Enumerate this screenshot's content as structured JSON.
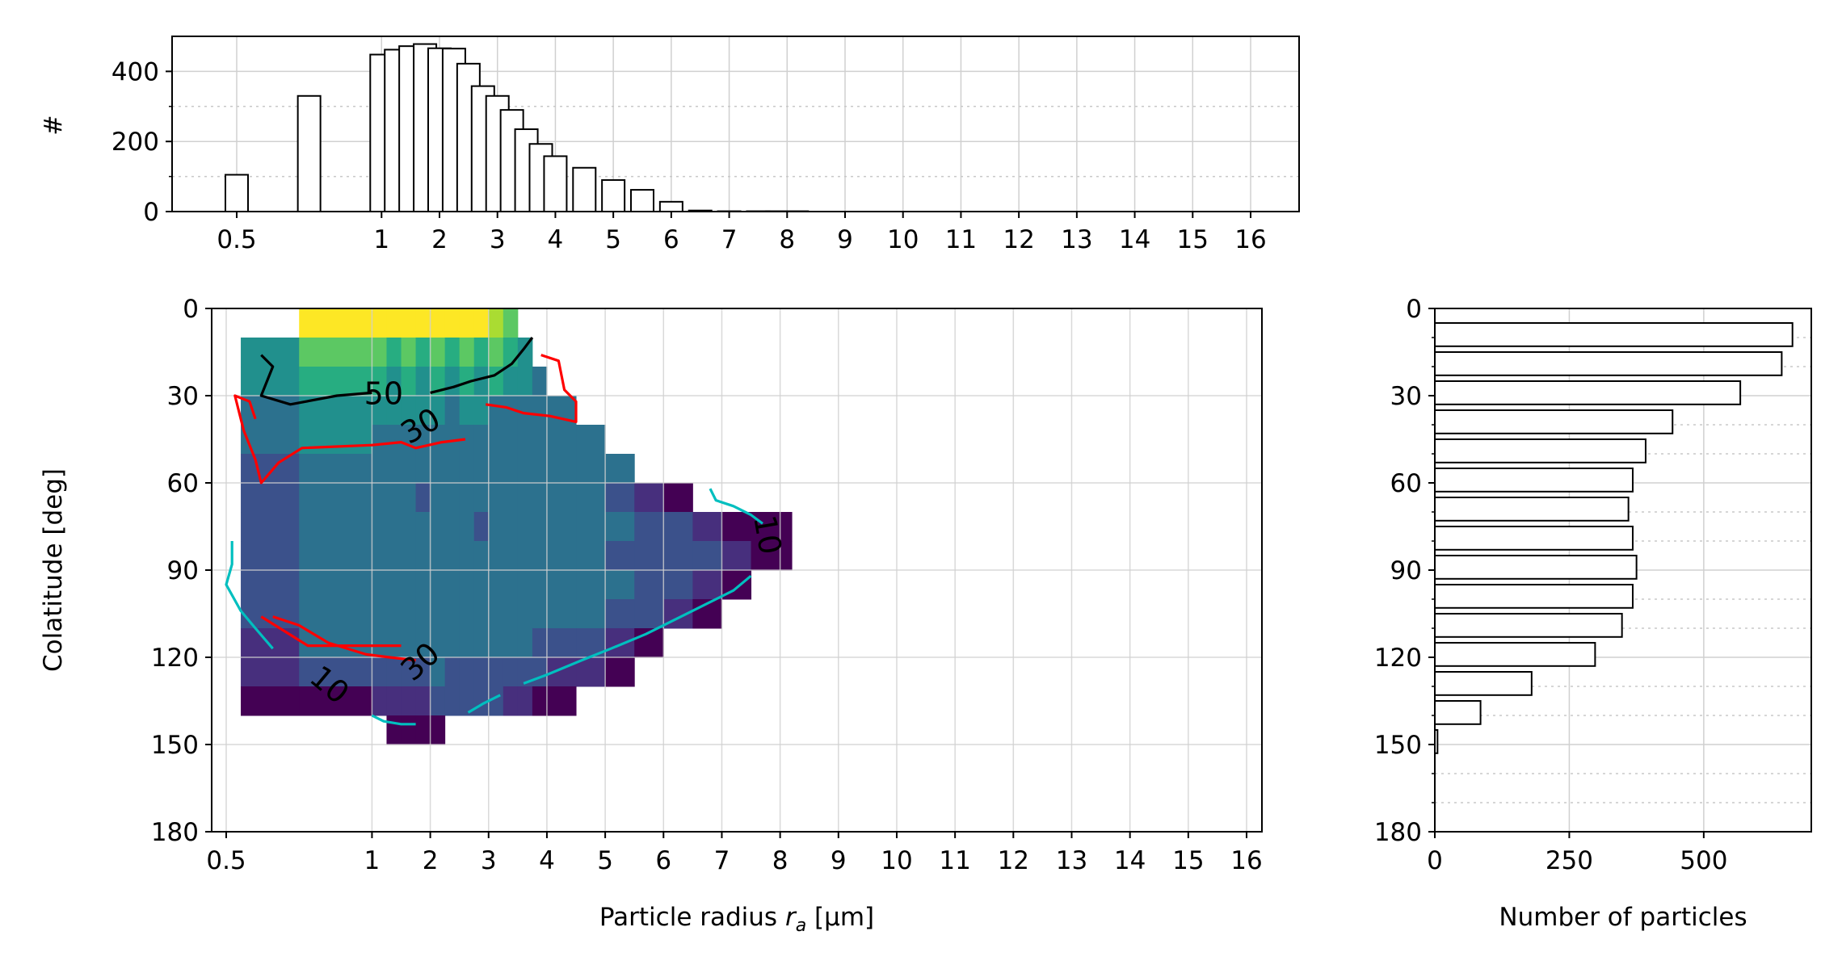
{
  "chart_data": [
    {
      "type": "bar",
      "panel": "top",
      "ylabel": "#",
      "xlabel": "",
      "x_ticklabels": [
        "0.5",
        "1",
        "2",
        "3",
        "4",
        "5",
        "6",
        "7",
        "8",
        "9",
        "10",
        "11",
        "12",
        "13",
        "14",
        "15",
        "16"
      ],
      "y_ticklabels": [
        "0",
        "200",
        "400"
      ],
      "ylim": [
        0,
        500
      ],
      "grid": true,
      "bar_centers": [
        0.5,
        0.75,
        1.0,
        1.25,
        1.5,
        1.75,
        2.0,
        2.25,
        2.5,
        2.75,
        3.0,
        3.25,
        3.5,
        3.75,
        4.0,
        4.5,
        5.0,
        5.5,
        6.0,
        6.5,
        7.0,
        7.5,
        8,
        9,
        10,
        11,
        12,
        13,
        14,
        15,
        16
      ],
      "values": [
        105,
        330,
        448,
        462,
        472,
        478,
        466,
        465,
        422,
        358,
        330,
        290,
        235,
        193,
        158,
        125,
        90,
        62,
        28,
        3,
        1,
        1,
        1,
        0,
        0,
        0,
        0,
        0,
        0,
        0,
        0
      ]
    },
    {
      "type": "heatmap",
      "panel": "main",
      "xlabel": "Particle radius r_a [µm]",
      "ylabel": "Colatitude [deg]",
      "xlabel_parts": {
        "pre": "Particle radius ",
        "var": "r",
        "sub": "a",
        "post": " [µm]"
      },
      "x_ticklabels": [
        "0.5",
        "1",
        "2",
        "3",
        "4",
        "5",
        "6",
        "7",
        "8",
        "9",
        "10",
        "11",
        "12",
        "13",
        "14",
        "15",
        "16"
      ],
      "y_ticklabels": [
        "0",
        "30",
        "60",
        "90",
        "120",
        "150",
        "180"
      ],
      "ylim": [
        180,
        0
      ],
      "grid": true,
      "colormap": "viridis",
      "contour_labels": [
        {
          "text": "50",
          "color": "#000000"
        },
        {
          "text": "30",
          "color": "#ff0000"
        },
        {
          "text": "30",
          "color": "#ff0000"
        },
        {
          "text": "10",
          "color": "#00bfbf"
        },
        {
          "text": "10",
          "color": "#00bfbf"
        }
      ]
    },
    {
      "type": "bar",
      "orientation": "horizontal",
      "panel": "right",
      "xlabel": "Number of particles",
      "x_ticklabels": [
        "0",
        "250",
        "500"
      ],
      "y_ticklabels": [
        "0",
        "30",
        "60",
        "90",
        "120",
        "150",
        "180"
      ],
      "xlim": [
        0,
        700
      ],
      "ylim": [
        180,
        0
      ],
      "grid": true,
      "bin_starts": [
        5,
        15,
        25,
        35,
        45,
        55,
        65,
        75,
        85,
        95,
        105,
        115,
        125,
        135,
        145,
        155,
        165,
        175
      ],
      "values": [
        665,
        645,
        568,
        442,
        392,
        368,
        360,
        368,
        375,
        368,
        348,
        298,
        180,
        85,
        5,
        0,
        0,
        0
      ]
    }
  ]
}
